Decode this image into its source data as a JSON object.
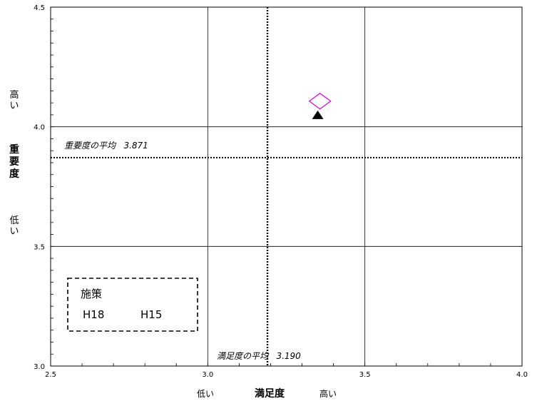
{
  "chart_data": {
    "type": "scatter",
    "xlim": [
      2.5,
      4.0
    ],
    "ylim": [
      3.0,
      4.5
    ],
    "x_ticks": [
      "2.5",
      "3.0",
      "3.5",
      "4.0"
    ],
    "y_ticks": [
      "3.0",
      "3.5",
      "4.0",
      "4.5"
    ],
    "series": [
      {
        "name": "H18",
        "marker": "diamond-open",
        "color": "#e000e0",
        "points": [
          {
            "x": 3.357,
            "y": 4.107
          }
        ]
      },
      {
        "name": "H15",
        "marker": "triangle-filled",
        "color": "#000000",
        "points": [
          {
            "x": 3.35,
            "y": 4.05
          }
        ]
      }
    ],
    "reference_lines": {
      "importance_avg": {
        "label": "重要度の平均",
        "value": 3.871,
        "value_text": "3.871"
      },
      "satisfaction_avg": {
        "label": "満足度の平均",
        "value": 3.19,
        "value_text": "3.190"
      }
    },
    "y_axis": {
      "high": "高い",
      "title": "重要度",
      "low": "低い"
    },
    "x_axis": {
      "low": "低い",
      "title": "満足度",
      "high": "高い"
    },
    "legend": {
      "title": "施策",
      "items": [
        "H18",
        "H15"
      ],
      "placement": "bottom-left"
    },
    "grid": true
  }
}
